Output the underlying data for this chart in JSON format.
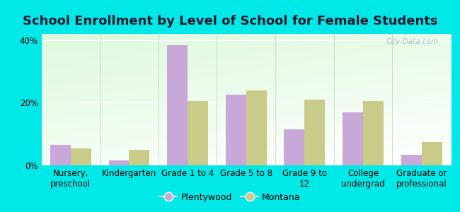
{
  "title": "School Enrollment by Level of School for Female Students",
  "categories": [
    "Nursery,\npreschool",
    "Kindergarten",
    "Grade 1 to 4",
    "Grade 5 to 8",
    "Grade 9 to\n12",
    "College\nundergrad",
    "Graduate or\nprofessional"
  ],
  "plentywood": [
    6.5,
    1.5,
    38.5,
    22.5,
    11.5,
    17.0,
    3.5
  ],
  "montana": [
    5.5,
    5.0,
    20.5,
    24.0,
    21.0,
    20.5,
    7.5
  ],
  "plentywood_color": "#c8a8d8",
  "montana_color": "#c8cc88",
  "background_color": "#00e8e8",
  "ylim": [
    0,
    42
  ],
  "yticks": [
    0,
    20,
    40
  ],
  "ytick_labels": [
    "0%",
    "20%",
    "40%"
  ],
  "bar_width": 0.35,
  "legend_labels": [
    "Plentywood",
    "Montana"
  ],
  "watermark": "City-Data.com",
  "title_fontsize": 13,
  "tick_fontsize": 8.5
}
